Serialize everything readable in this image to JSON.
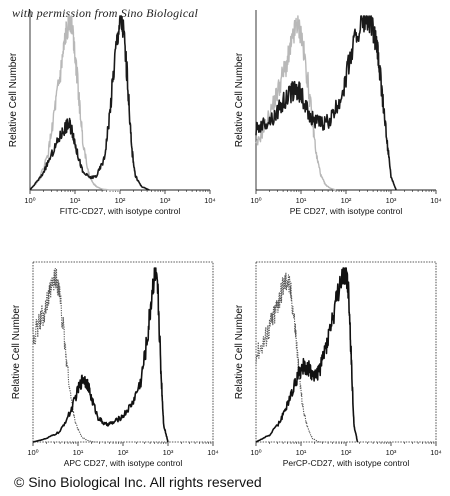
{
  "watermark": "with permission from Sino Biological",
  "copyright": "© Sino Biological Inc. All rights reserved",
  "chart_data": [
    {
      "type": "line",
      "xscale": "log",
      "xlim": [
        1,
        10000
      ],
      "xticks": [
        "10⁰",
        "10¹",
        "10²",
        "10³",
        "10⁴"
      ],
      "xlabel": "FITC-CD27, with isotype control",
      "ylabel": "Relative Cell Number",
      "series": [
        {
          "role": "isotype",
          "color": "#b8b8b8",
          "x": [
            1.0,
            1.6,
            2.5,
            3.5,
            4.5,
            5.5,
            6.5,
            7.5,
            8.5,
            10,
            12,
            15,
            20,
            25,
            30,
            40,
            60,
            100
          ],
          "y": [
            0,
            6,
            20,
            45,
            62,
            78,
            92,
            98,
            96,
            80,
            55,
            28,
            10,
            4,
            2,
            0.5,
            0,
            0
          ]
        },
        {
          "role": "stained",
          "color": "#1a1a1a",
          "x": [
            1.0,
            1.8,
            3,
            4.5,
            6,
            7.5,
            9,
            11,
            15,
            22,
            30,
            45,
            60,
            80,
            100,
            120,
            150,
            180,
            220,
            300,
            450
          ],
          "y": [
            0,
            8,
            20,
            30,
            36,
            38,
            33,
            22,
            10,
            7,
            8,
            18,
            45,
            80,
            98,
            92,
            60,
            25,
            8,
            2,
            0
          ]
        }
      ]
    },
    {
      "type": "line",
      "xscale": "log",
      "xlim": [
        1,
        10000
      ],
      "xticks": [
        "10⁰",
        "10¹",
        "10²",
        "10³",
        "10⁴"
      ],
      "xlabel": "PE CD27,  with isotype control",
      "ylabel": "Relative Cell Number",
      "series": [
        {
          "role": "isotype",
          "color": "#b8b8b8",
          "x": [
            1.0,
            1.5,
            2.5,
            3.5,
            5,
            6.5,
            8,
            10,
            13,
            17,
            22,
            28,
            35,
            45,
            60
          ],
          "y": [
            25,
            35,
            50,
            62,
            74,
            86,
            96,
            90,
            70,
            45,
            20,
            8,
            3,
            1,
            0
          ]
        },
        {
          "role": "stained",
          "color": "#1a1a1a",
          "x": [
            1.0,
            1.5,
            2.5,
            4,
            6,
            8,
            10,
            14,
            20,
            30,
            45,
            70,
            100,
            150,
            220,
            300,
            400,
            500,
            600,
            800,
            1000,
            1300
          ],
          "y": [
            35,
            38,
            42,
            50,
            56,
            58,
            55,
            45,
            40,
            38,
            40,
            50,
            65,
            85,
            96,
            98,
            92,
            80,
            62,
            30,
            8,
            0
          ]
        }
      ]
    },
    {
      "type": "line",
      "xscale": "log",
      "xlim": [
        1,
        10000
      ],
      "xticks": [
        "10⁰",
        "10¹",
        "10²",
        "10³",
        "10⁴"
      ],
      "xlabel": "APC CD27, with isotype control",
      "ylabel": "Relative Cell Number",
      "series": [
        {
          "role": "isotype",
          "color": "#555555",
          "dashed": true,
          "x": [
            1.0,
            1.3,
            1.7,
            2.2,
            2.7,
            3.2,
            3.8,
            4.5,
            5.5,
            7,
            9,
            12,
            16,
            22,
            30
          ],
          "y": [
            60,
            66,
            74,
            82,
            90,
            95,
            88,
            70,
            48,
            25,
            10,
            3,
            1,
            0,
            0
          ]
        },
        {
          "role": "stained",
          "color": "#111111",
          "x": [
            1.0,
            2,
            4,
            7,
            10,
            13,
            16,
            20,
            28,
            40,
            60,
            100,
            160,
            250,
            350,
            450,
            520,
            600,
            700,
            800,
            1000
          ],
          "y": [
            0,
            2,
            6,
            18,
            30,
            37,
            34,
            25,
            14,
            10,
            11,
            15,
            22,
            35,
            60,
            88,
            98,
            85,
            40,
            10,
            0
          ]
        }
      ]
    },
    {
      "type": "line",
      "xscale": "log",
      "xlim": [
        1,
        10000
      ],
      "xticks": [
        "10⁰",
        "10¹",
        "10²",
        "10³",
        "10⁴"
      ],
      "xlabel": "PerCP-CD27, with isotype control",
      "ylabel": "Relative Cell Number",
      "series": [
        {
          "role": "isotype",
          "color": "#555555",
          "dashed": true,
          "x": [
            1.0,
            1.5,
            2,
            2.6,
            3.2,
            4,
            5,
            6,
            7.5,
            9,
            11,
            14,
            18,
            25,
            35
          ],
          "y": [
            50,
            58,
            66,
            74,
            82,
            90,
            94,
            86,
            65,
            40,
            20,
            8,
            2,
            0,
            0
          ]
        },
        {
          "role": "stained",
          "color": "#111111",
          "x": [
            1.0,
            2,
            3.5,
            5,
            7,
            9,
            12,
            15,
            20,
            25,
            30,
            40,
            55,
            75,
            100,
            115,
            130,
            150,
            180
          ],
          "y": [
            0,
            4,
            12,
            22,
            32,
            40,
            44,
            42,
            38,
            40,
            48,
            60,
            75,
            92,
            98,
            85,
            50,
            10,
            0
          ]
        }
      ]
    }
  ]
}
